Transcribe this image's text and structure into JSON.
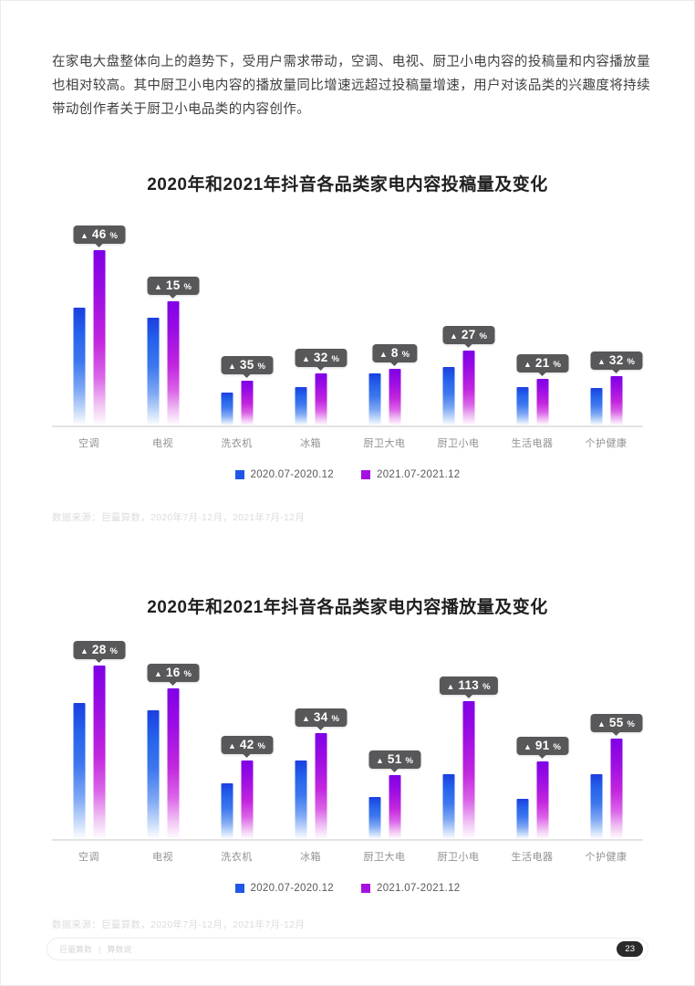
{
  "page": {
    "intro_paragraph": "在家电大盘整体向上的趋势下，受用户需求带动，空调、电视、厨卫小电内容的投稿量和内容播放量也相对较高。其中厨卫小电内容的播放量同比增速远超过投稿量增速，用户对该品类的兴趣度将持续带动创作者关于厨卫小电品类的内容创作。",
    "footer": {
      "section_label": "巨量算数",
      "divider": "|",
      "channel_label": "算数说",
      "page_number": "23"
    }
  },
  "colors": {
    "series_2020_blue": "#2057e8",
    "series_2021_purple": "#a511e2",
    "badge_background": "#58585a",
    "axis_line": "#e3e3e3",
    "category_label": "#909090",
    "source_text": "#dcdcdc"
  },
  "chart_data": [
    {
      "type": "bar",
      "title": "2020年和2021年抖音各品类家电内容投稿量及变化",
      "categories": [
        "空调",
        "电视",
        "洗衣机",
        "冰箱",
        "厨卫大电",
        "厨卫小电",
        "生活电器",
        "个护健康"
      ],
      "series": [
        {
          "name": "2020.07-2020.12",
          "color": "#2057e8",
          "values": [
            129,
            118,
            36,
            42,
            57,
            64,
            42,
            41
          ]
        },
        {
          "name": "2021.07-2021.12",
          "color": "#a511e2",
          "values": [
            192,
            136,
            49,
            57,
            62,
            82,
            51,
            54
          ]
        }
      ],
      "units": "相对高度（图中未显示数值轴）",
      "badge_arrow": "▲",
      "badge_suffix": "%",
      "change_badges": [
        "46",
        "15",
        "35",
        "32",
        "8",
        "27",
        "21",
        "32"
      ],
      "legend_position": "bottom",
      "grid": false,
      "source": "数据来源：巨量算数，2020年7月-12月，2021年7月-12月"
    },
    {
      "type": "bar",
      "title": "2020年和2021年抖音各品类家电内容播放量及变化",
      "categories": [
        "空调",
        "电视",
        "洗衣机",
        "冰箱",
        "厨卫大电",
        "厨卫小电",
        "生活电器",
        "个护健康"
      ],
      "series": [
        {
          "name": "2020.07-2020.12",
          "color": "#2057e8",
          "values": [
            149,
            141,
            61,
            86,
            46,
            71,
            44,
            71
          ]
        },
        {
          "name": "2021.07-2021.12",
          "color": "#a511e2",
          "values": [
            190,
            165,
            86,
            116,
            70,
            151,
            85,
            110
          ]
        }
      ],
      "units": "相对高度（图中未显示数值轴）",
      "badge_arrow": "▲",
      "badge_suffix": "%",
      "change_badges": [
        "28",
        "16",
        "42",
        "34",
        "51",
        "113",
        "91",
        "55"
      ],
      "legend_position": "bottom",
      "grid": false,
      "source": "数据来源：巨量算数，2020年7月-12月，2021年7月-12月"
    }
  ]
}
